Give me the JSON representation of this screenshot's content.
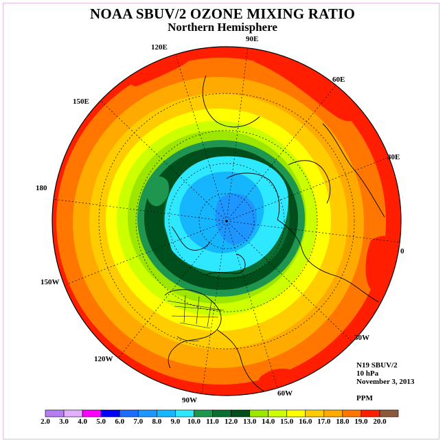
{
  "title": "NOAA SBUV/2 OZONE MIXING RATIO",
  "subtitle": "Northern Hemisphere",
  "longitude_labels": [
    "90E",
    "60E",
    "30E",
    "0",
    "30W",
    "60W",
    "90W",
    "120W",
    "150W",
    "180",
    "150E",
    "120E"
  ],
  "info": {
    "instrument": "N19 SBUV/2",
    "level": "10 hPa",
    "date": "November 3, 2013",
    "units": "PPM"
  },
  "colorbar": {
    "ticks": [
      "2.0",
      "3.0",
      "4.0",
      "5.0",
      "6.0",
      "7.0",
      "8.0",
      "9.0",
      "10.0",
      "11.0",
      "12.0",
      "13.0",
      "14.0",
      "15.0",
      "16.0",
      "17.0",
      "18.0",
      "19.0",
      "20.0"
    ],
    "colors": [
      "#b57ef0",
      "#e0b0ff",
      "#ff00ff",
      "#0000ff",
      "#1e6cff",
      "#1e96ff",
      "#16b6ff",
      "#2ee8ff",
      "#1e9650",
      "#0a6e32",
      "#004e1c",
      "#9ce600",
      "#ccff00",
      "#ffff00",
      "#ffcc00",
      "#ffaa00",
      "#ff7700",
      "#ff1e00",
      "#8b5a3c"
    ]
  },
  "map": {
    "projection": "polar stereographic",
    "hemisphere": "north"
  }
}
